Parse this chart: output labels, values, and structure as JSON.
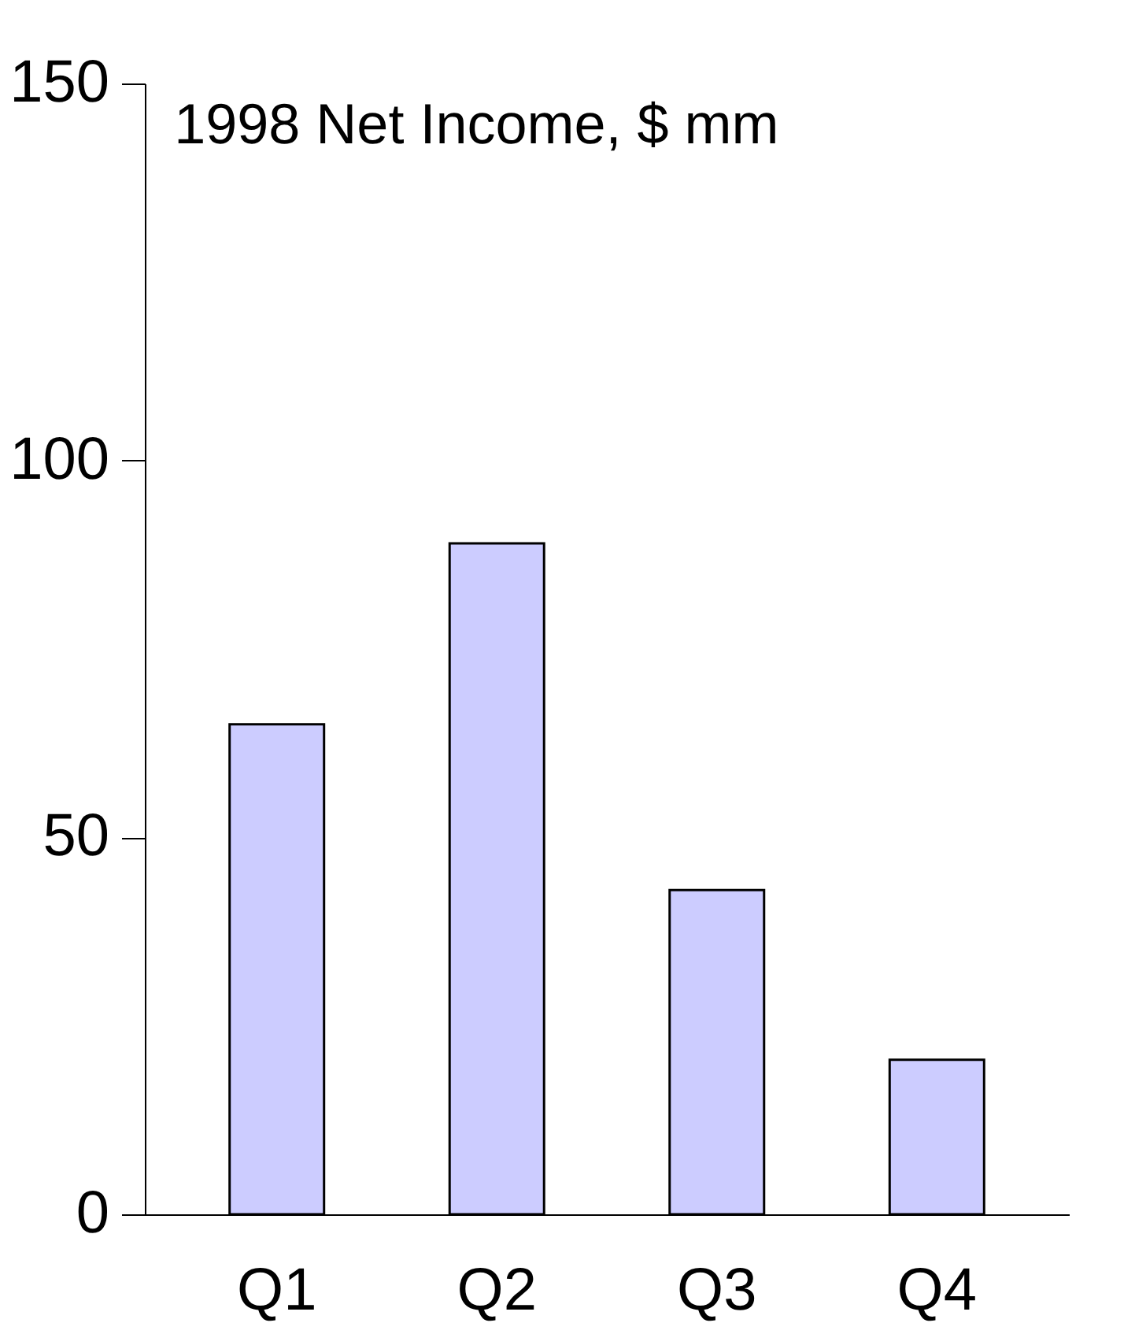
{
  "chart_data": {
    "type": "bar",
    "title": "1998 Net Income, $ mm",
    "categories": [
      "Q1",
      "Q2",
      "Q3",
      "Q4"
    ],
    "values": [
      65,
      89,
      43,
      20.5
    ],
    "color": "#ccccff",
    "ylim": [
      0,
      150
    ],
    "yticks": [
      0,
      50,
      100,
      150
    ],
    "grid": false
  }
}
